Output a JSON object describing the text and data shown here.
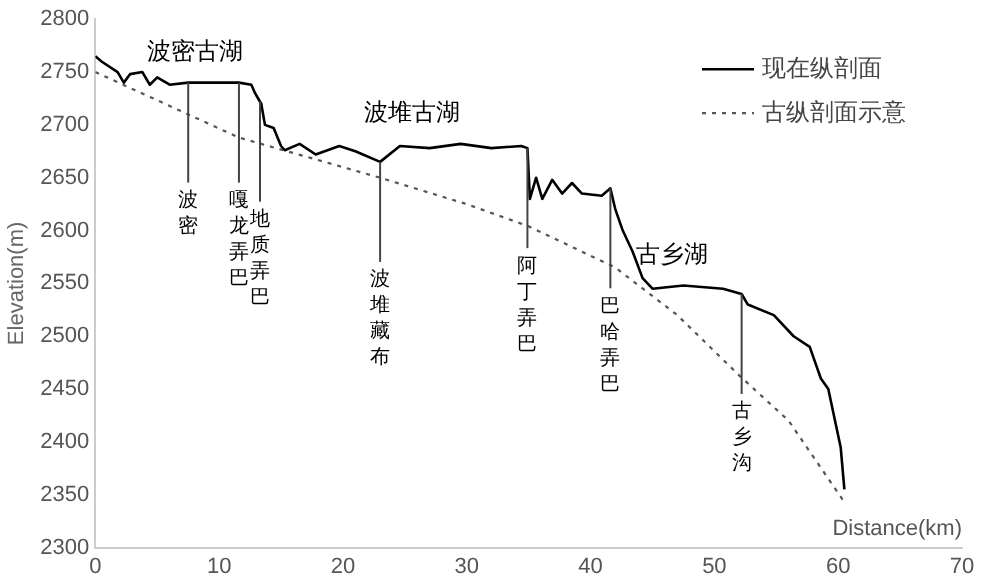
{
  "chart_data": {
    "type": "line",
    "xlabel": "Distance(km)",
    "ylabel": "Elevation(m)",
    "xlim": [
      0,
      70
    ],
    "xticks": [
      0,
      10,
      20,
      30,
      40,
      50,
      60,
      70
    ],
    "ylim": [
      2300,
      2800
    ],
    "yticks": [
      2300,
      2350,
      2400,
      2450,
      2500,
      2550,
      2600,
      2650,
      2700,
      2750,
      2800
    ],
    "grid": false,
    "legend": "top right",
    "series": [
      {
        "name": "现在纵剖面",
        "color": "#000000",
        "line_style": "solid",
        "x": [
          0,
          0.5,
          1.8,
          2.3,
          2.8,
          3.8,
          4.4,
          5,
          6,
          7.5,
          8.6,
          11.6,
          12.6,
          12.9,
          13.4,
          13.7,
          14.4,
          15,
          15.3,
          16.5,
          17.8,
          19.7,
          21,
          23,
          24.6,
          27,
          29.5,
          32,
          34.4,
          34.9,
          35.1,
          35.6,
          36.1,
          36.9,
          37.7,
          38.5,
          39.3,
          40.9,
          41.6,
          42,
          42.6,
          43.4,
          44.2,
          45,
          47.5,
          50.7,
          52.2,
          52.7,
          54.8,
          56.4,
          57.7,
          58.6,
          59.2,
          60.2,
          60.5
        ],
        "values": [
          2765,
          2760,
          2750,
          2740,
          2748,
          2750,
          2738,
          2745,
          2738,
          2740,
          2740,
          2740,
          2738,
          2730,
          2720,
          2700,
          2697,
          2680,
          2676,
          2682,
          2672,
          2680,
          2675,
          2665,
          2680,
          2678,
          2682,
          2678,
          2680,
          2678,
          2630,
          2650,
          2630,
          2648,
          2635,
          2645,
          2635,
          2633,
          2640,
          2620,
          2600,
          2580,
          2555,
          2545,
          2548,
          2545,
          2540,
          2530,
          2520,
          2500,
          2490,
          2460,
          2450,
          2395,
          2355
        ]
      },
      {
        "name": "古纵剖面示意",
        "color": "#555555",
        "line_style": "dotted",
        "x": [
          0,
          11.6,
          23,
          30,
          35,
          42,
          47,
          52,
          56,
          60.5
        ],
        "values": [
          2750,
          2688,
          2650,
          2625,
          2604,
          2565,
          2520,
          2463,
          2420,
          2343
        ]
      }
    ],
    "annotations": [
      "波密古湖",
      "波堆古湖",
      "古乡湖",
      {
        "text": "波密",
        "x": 7.5,
        "y": 2740
      },
      {
        "text": "嘎龙弄巴",
        "x": 11.6,
        "y": 2740
      },
      {
        "text": "地质弄巴",
        "x": 13.3,
        "y": 2722
      },
      {
        "text": "波堆藏布",
        "x": 23,
        "y": 2665
      },
      {
        "text": "阿丁弄巴",
        "x": 34.9,
        "y": 2678
      },
      {
        "text": "巴哈弄巴",
        "x": 41.6,
        "y": 2640
      },
      {
        "text": "古乡沟",
        "x": 52.2,
        "y": 2540
      }
    ]
  }
}
